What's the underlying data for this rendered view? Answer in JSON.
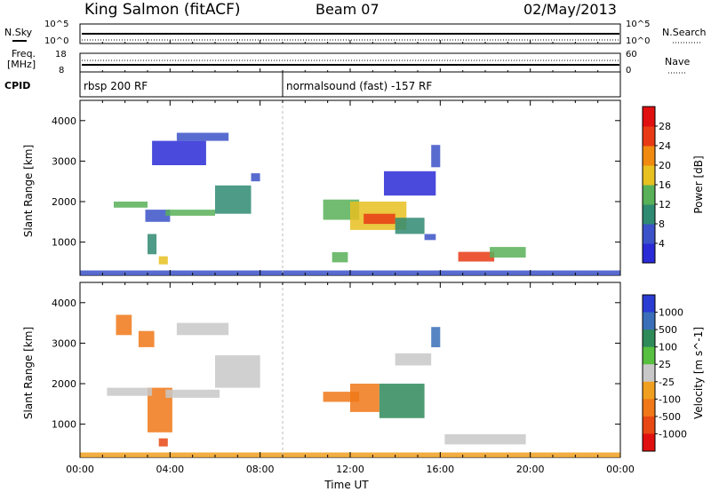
{
  "header": {
    "station": "King Salmon (fitACF)",
    "beam": "Beam 07",
    "date": "02/May/2013"
  },
  "summary": {
    "nsky_label": "N.Sky",
    "nsearch_label": "N.Search",
    "freq_label_top": "Freq.",
    "freq_label_unit": "[MHz]",
    "nave_label": "Nave",
    "cpid_label": "CPID",
    "left_ticks_top": [
      "10^5",
      "10^0"
    ],
    "right_ticks_top": [
      "10^5",
      "10^0"
    ],
    "left_ticks_freq": [
      "18",
      "8"
    ],
    "right_ticks_nave": [
      "60",
      "0"
    ],
    "cpid_segments": [
      {
        "start_hour": 0.0,
        "label": "rbsp 200 RF"
      },
      {
        "start_hour": 9.0,
        "label": "normalsound (fast) -157 RF"
      }
    ]
  },
  "chart_data": [
    {
      "type": "heatmap",
      "parameter": "Power",
      "ylabel": "Slant Range [km]",
      "xlabel": "",
      "xlim": [
        0,
        24
      ],
      "ylim": [
        180,
        4500
      ],
      "yticks": [
        1000,
        2000,
        3000,
        4000
      ],
      "colorbar": {
        "label": "Power [dB]",
        "ticks": [
          "4",
          "8",
          "12",
          "16",
          "20",
          "24",
          "28"
        ],
        "colors": [
          "#2a2ad6",
          "#3b52c8",
          "#2f8a72",
          "#58b058",
          "#e8c020",
          "#f08a10",
          "#e83a14",
          "#e01010"
        ]
      },
      "regions": [
        {
          "x0": 1.5,
          "x1": 3.0,
          "y0": 1850,
          "y1": 2000,
          "level": 3
        },
        {
          "x0": 2.9,
          "x1": 4.0,
          "y0": 1500,
          "y1": 1800,
          "level": 1
        },
        {
          "x0": 3.8,
          "x1": 6.0,
          "y0": 1650,
          "y1": 1800,
          "level": 3
        },
        {
          "x0": 6.0,
          "x1": 7.6,
          "y0": 1700,
          "y1": 2400,
          "level": 2
        },
        {
          "x0": 7.6,
          "x1": 8.0,
          "y0": 2500,
          "y1": 2700,
          "level": 1
        },
        {
          "x0": 3.2,
          "x1": 5.6,
          "y0": 2900,
          "y1": 3500,
          "level": 0
        },
        {
          "x0": 4.3,
          "x1": 6.6,
          "y0": 3500,
          "y1": 3700,
          "level": 1
        },
        {
          "x0": 3.0,
          "x1": 3.4,
          "y0": 700,
          "y1": 1200,
          "level": 2
        },
        {
          "x0": 3.5,
          "x1": 3.9,
          "y0": 450,
          "y1": 650,
          "level": 4
        },
        {
          "x0": 10.8,
          "x1": 12.4,
          "y0": 1550,
          "y1": 2050,
          "level": 3
        },
        {
          "x0": 12.0,
          "x1": 14.5,
          "y0": 1300,
          "y1": 2000,
          "level": 4
        },
        {
          "x0": 12.6,
          "x1": 14.0,
          "y0": 1450,
          "y1": 1700,
          "level": 6
        },
        {
          "x0": 14.0,
          "x1": 15.3,
          "y0": 1200,
          "y1": 1600,
          "level": 2
        },
        {
          "x0": 15.3,
          "x1": 15.8,
          "y0": 1050,
          "y1": 1200,
          "level": 1
        },
        {
          "x0": 13.5,
          "x1": 15.8,
          "y0": 2150,
          "y1": 2750,
          "level": 0
        },
        {
          "x0": 15.6,
          "x1": 16.0,
          "y0": 2850,
          "y1": 3400,
          "level": 1
        },
        {
          "x0": 11.2,
          "x1": 11.9,
          "y0": 500,
          "y1": 750,
          "level": 3
        },
        {
          "x0": 16.8,
          "x1": 18.4,
          "y0": 520,
          "y1": 760,
          "level": 6
        },
        {
          "x0": 18.2,
          "x1": 19.8,
          "y0": 620,
          "y1": 880,
          "level": 3
        },
        {
          "x0": 0.0,
          "x1": 24.0,
          "y0": 180,
          "y1": 300,
          "level": 1
        }
      ]
    },
    {
      "type": "heatmap",
      "parameter": "Velocity",
      "ylabel": "Slant Range [km]",
      "xlabel": "Time UT",
      "xlim": [
        0,
        24
      ],
      "ylim": [
        180,
        4500
      ],
      "xticks": [
        "00:00",
        "04:00",
        "08:00",
        "12:00",
        "16:00",
        "20:00",
        "00:00"
      ],
      "yticks": [
        1000,
        2000,
        3000,
        4000
      ],
      "colorbar": {
        "label": "Velocity [m s^-1]",
        "ticks": [
          "1000",
          "500",
          "100",
          "25",
          "-25",
          "-100",
          "-500",
          "-1000"
        ],
        "colors": [
          "#2a3cd2",
          "#3a6eb8",
          "#2f8a5a",
          "#58c040",
          "#c8c8c8",
          "#f0a020",
          "#f07818",
          "#e84814",
          "#e01010"
        ]
      },
      "regions": [
        {
          "x0": 1.6,
          "x1": 2.3,
          "y0": 3200,
          "y1": 3700,
          "level": 6
        },
        {
          "x0": 2.6,
          "x1": 3.3,
          "y0": 2900,
          "y1": 3300,
          "level": 6
        },
        {
          "x0": 3.0,
          "x1": 4.1,
          "y0": 800,
          "y1": 1900,
          "level": 6
        },
        {
          "x0": 3.5,
          "x1": 3.9,
          "y0": 450,
          "y1": 650,
          "level": 7
        },
        {
          "x0": 1.2,
          "x1": 3.2,
          "y0": 1700,
          "y1": 1900,
          "level": 4
        },
        {
          "x0": 3.8,
          "x1": 6.2,
          "y0": 1650,
          "y1": 1850,
          "level": 4
        },
        {
          "x0": 6.0,
          "x1": 8.0,
          "y0": 1900,
          "y1": 2700,
          "level": 4
        },
        {
          "x0": 4.3,
          "x1": 6.6,
          "y0": 3200,
          "y1": 3500,
          "level": 4
        },
        {
          "x0": 10.8,
          "x1": 12.4,
          "y0": 1550,
          "y1": 1800,
          "level": 6
        },
        {
          "x0": 12.0,
          "x1": 13.3,
          "y0": 1300,
          "y1": 2000,
          "level": 6
        },
        {
          "x0": 13.3,
          "x1": 15.3,
          "y0": 1150,
          "y1": 2000,
          "level": 2
        },
        {
          "x0": 14.0,
          "x1": 15.6,
          "y0": 2450,
          "y1": 2750,
          "level": 4
        },
        {
          "x0": 15.6,
          "x1": 16.0,
          "y0": 2900,
          "y1": 3400,
          "level": 1
        },
        {
          "x0": 16.2,
          "x1": 19.8,
          "y0": 500,
          "y1": 750,
          "level": 4
        },
        {
          "x0": 0.0,
          "x1": 24.0,
          "y0": 180,
          "y1": 300,
          "level": 5
        }
      ]
    }
  ]
}
